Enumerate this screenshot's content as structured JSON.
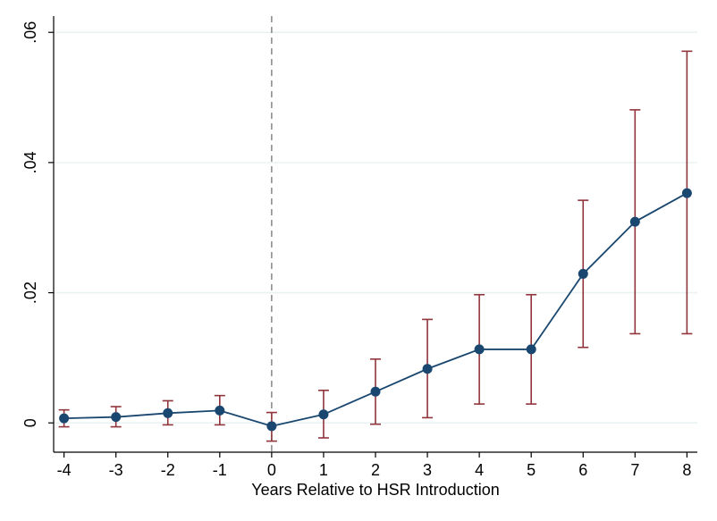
{
  "chart_data": {
    "type": "line",
    "title": "",
    "xlabel": "Years Relative to HSR Introduction",
    "ylabel": "",
    "x": [
      -4,
      -3,
      -2,
      -1,
      0,
      1,
      2,
      3,
      4,
      5,
      6,
      7,
      8
    ],
    "x_tick_labels": [
      "-4",
      "-3",
      "-2",
      "-1",
      "0",
      "1",
      "2",
      "3",
      "4",
      "5",
      "6",
      "7",
      "8"
    ],
    "xlim": [
      -4.2,
      8.2
    ],
    "ylim": [
      -0.0045,
      0.0625
    ],
    "y_ticks": [
      0,
      0.02,
      0.04,
      0.06
    ],
    "y_tick_labels": [
      "0",
      ".02",
      ".04",
      ".06"
    ],
    "grid": "horizontal",
    "reference_line": {
      "x": 0,
      "style": "dashed"
    },
    "series": [
      {
        "values": [
          0.0007,
          0.0009,
          0.0015,
          0.0019,
          -0.0005,
          0.0013,
          0.0048,
          0.0083,
          0.0113,
          0.0113,
          0.0229,
          0.0309,
          0.0353
        ],
        "ci_lower": [
          -0.0006,
          -0.0006,
          -0.0003,
          -0.0003,
          -0.0028,
          -0.0023,
          -0.0002,
          0.0008,
          0.0029,
          0.0029,
          0.0116,
          0.0137,
          0.0137
        ],
        "ci_upper": [
          0.002,
          0.0025,
          0.0034,
          0.0042,
          0.0016,
          0.005,
          0.0098,
          0.0159,
          0.0197,
          0.0197,
          0.0342,
          0.0481,
          0.0571
        ]
      }
    ],
    "colors": {
      "line": "#1a476f",
      "marker": "#1a476f",
      "ci": "#90353b",
      "grid": "#eaf2f3",
      "reference": "#7f7f7f",
      "axis": "#000000"
    }
  }
}
